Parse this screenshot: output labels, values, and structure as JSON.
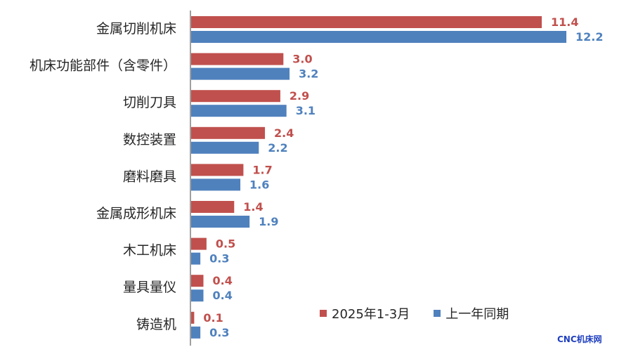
{
  "chart_data": {
    "type": "bar",
    "orientation": "horizontal",
    "categories": [
      "金属切削机床",
      "机床功能部件（含零件）",
      "切削刀具",
      "数控装置",
      "磨料磨具",
      "金属成形机床",
      "木工机床",
      "量具量仪",
      "铸造机"
    ],
    "series": [
      {
        "name": "2025年1-3月",
        "color": "#C0504D",
        "values": [
          11.4,
          3.0,
          2.9,
          2.4,
          1.7,
          1.4,
          0.5,
          0.4,
          0.1
        ],
        "labels": [
          "11.4",
          "3.0",
          "2.9",
          "2.4",
          "1.7",
          "1.4",
          "0.5",
          "0.4",
          "0.1"
        ]
      },
      {
        "name": "上一年同期",
        "color": "#4F81BD",
        "values": [
          12.2,
          3.2,
          3.1,
          2.2,
          1.6,
          1.9,
          0.3,
          0.4,
          0.3
        ],
        "labels": [
          "12.2",
          "3.2",
          "3.1",
          "2.2",
          "1.6",
          "1.9",
          "0.3",
          "0.4",
          "0.3"
        ]
      }
    ],
    "xlim": [
      0,
      13.0
    ],
    "grid": false,
    "legend_position": "bottom-right"
  },
  "watermark": {
    "text": "CNC机床网",
    "color": "#1F3FBF"
  },
  "colors": {
    "axis": "#808080",
    "text": "#262626"
  }
}
